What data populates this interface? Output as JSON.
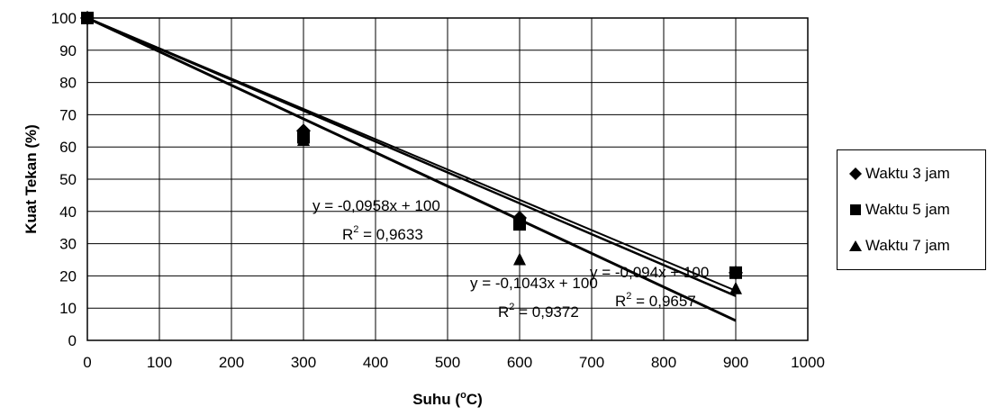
{
  "chart_data": {
    "type": "scatter",
    "xlabel": "Suhu (°C)",
    "ylabel": "Kuat Tekan (%)",
    "xlim": [
      0,
      1000
    ],
    "ylim": [
      0,
      100
    ],
    "xticks": [
      0,
      100,
      200,
      300,
      400,
      500,
      600,
      700,
      800,
      900,
      1000
    ],
    "yticks": [
      0,
      10,
      20,
      30,
      40,
      50,
      60,
      70,
      80,
      90,
      100
    ],
    "grid": true,
    "legend_position": "right",
    "x": [
      0,
      300,
      600,
      900
    ],
    "series": [
      {
        "name": "Waktu 3 jam",
        "marker": "diamond",
        "values": [
          100,
          65,
          38,
          21
        ],
        "trendline": {
          "slope": -0.094,
          "intercept": 100,
          "equation": "y = -0,094x + 100",
          "r2_prefix": "R",
          "r2_sup": "2",
          "r2_value": " = 0,9657"
        }
      },
      {
        "name": "Waktu 5 jam",
        "marker": "square",
        "values": [
          100,
          63,
          36,
          21
        ],
        "trendline": {
          "slope": -0.0958,
          "intercept": 100,
          "equation": "y = -0,0958x + 100",
          "r2_prefix": "R",
          "r2_sup": "2",
          "r2_value": " = 0,9633"
        }
      },
      {
        "name": "Waktu 7 jam",
        "marker": "triangle",
        "values": [
          100,
          62,
          25,
          16
        ],
        "trendline": {
          "slope": -0.1043,
          "intercept": 100,
          "equation": "y = -0,1043x + 100",
          "r2_prefix": "R",
          "r2_sup": "2",
          "r2_value": " = 0,9372"
        }
      }
    ]
  },
  "axis": {
    "xlabel_main": "Suhu (",
    "xlabel_sup": "o",
    "xlabel_end": "C)"
  },
  "colors": {
    "marker": "#000000",
    "grid": "#000000",
    "line": "#000000"
  }
}
